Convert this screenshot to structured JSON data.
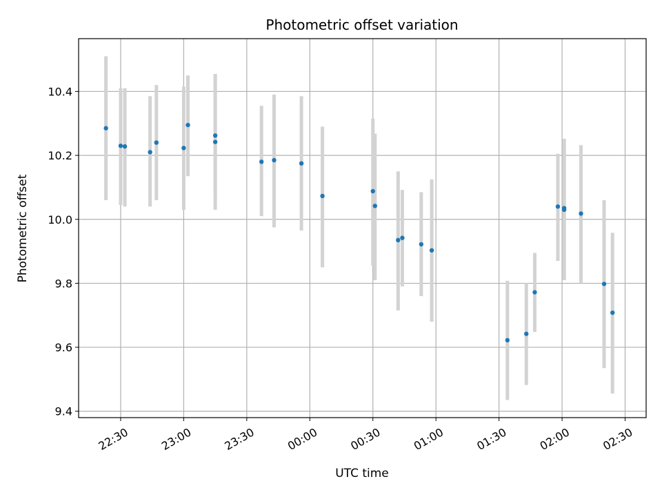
{
  "chart_data": {
    "type": "scatter",
    "title": "Photometric offset variation",
    "xlabel": "UTC time",
    "ylabel": "Photometric offset",
    "x_unit": "UTC time",
    "xlim": [
      "22:10",
      "02:40"
    ],
    "ylim": [
      9.38,
      10.565
    ],
    "grid": true,
    "x_ticks": [
      "22:30",
      "23:00",
      "23:30",
      "00:00",
      "00:30",
      "01:00",
      "01:30",
      "02:00",
      "02:30"
    ],
    "y_ticks": [
      "9.4",
      "9.6",
      "9.8",
      "10.0",
      "10.2",
      "10.4"
    ],
    "point_color": "#1f77b4",
    "errorbar_color": "#d3d3d3",
    "points": [
      {
        "x": "22:23",
        "y": 10.285,
        "err_low": 10.06,
        "err_high": 10.51
      },
      {
        "x": "22:30",
        "y": 10.23,
        "err_low": 10.045,
        "err_high": 10.41
      },
      {
        "x": "22:32",
        "y": 10.228,
        "err_low": 10.04,
        "err_high": 10.41
      },
      {
        "x": "22:44",
        "y": 10.21,
        "err_low": 10.04,
        "err_high": 10.385
      },
      {
        "x": "22:47",
        "y": 10.24,
        "err_low": 10.06,
        "err_high": 10.42
      },
      {
        "x": "23:00",
        "y": 10.223,
        "err_low": 10.03,
        "err_high": 10.415
      },
      {
        "x": "23:02",
        "y": 10.295,
        "err_low": 10.135,
        "err_high": 10.45
      },
      {
        "x": "23:15",
        "y": 10.242,
        "err_low": 10.03,
        "err_high": 10.455
      },
      {
        "x": "23:15",
        "y": 10.262,
        "err_low": 10.07,
        "err_high": 10.455
      },
      {
        "x": "23:37",
        "y": 10.18,
        "err_low": 10.01,
        "err_high": 10.355
      },
      {
        "x": "23:43",
        "y": 10.185,
        "err_low": 9.975,
        "err_high": 10.39
      },
      {
        "x": "23:56",
        "y": 10.175,
        "err_low": 9.965,
        "err_high": 10.385
      },
      {
        "x": "00:06",
        "y": 10.073,
        "err_low": 9.85,
        "err_high": 10.29
      },
      {
        "x": "00:30",
        "y": 10.088,
        "err_low": 9.855,
        "err_high": 10.315
      },
      {
        "x": "00:31",
        "y": 10.042,
        "err_low": 9.81,
        "err_high": 10.268
      },
      {
        "x": "00:42",
        "y": 9.935,
        "err_low": 9.715,
        "err_high": 10.15
      },
      {
        "x": "00:44",
        "y": 9.942,
        "err_low": 9.79,
        "err_high": 10.092
      },
      {
        "x": "00:53",
        "y": 9.922,
        "err_low": 9.76,
        "err_high": 10.085
      },
      {
        "x": "00:58",
        "y": 9.903,
        "err_low": 9.68,
        "err_high": 10.125
      },
      {
        "x": "01:34",
        "y": 9.622,
        "err_low": 9.435,
        "err_high": 9.808
      },
      {
        "x": "01:43",
        "y": 9.642,
        "err_low": 9.482,
        "err_high": 9.8
      },
      {
        "x": "01:47",
        "y": 9.772,
        "err_low": 9.648,
        "err_high": 9.895
      },
      {
        "x": "01:58",
        "y": 10.04,
        "err_low": 9.87,
        "err_high": 10.205
      },
      {
        "x": "02:01",
        "y": 10.035,
        "err_low": 9.81,
        "err_high": 10.252
      },
      {
        "x": "02:01",
        "y": 10.03,
        "err_low": 9.81,
        "err_high": 10.252
      },
      {
        "x": "02:09",
        "y": 10.018,
        "err_low": 9.8,
        "err_high": 10.232
      },
      {
        "x": "02:20",
        "y": 9.798,
        "err_low": 9.535,
        "err_high": 10.06
      },
      {
        "x": "02:24",
        "y": 9.708,
        "err_low": 9.455,
        "err_high": 9.958
      }
    ]
  }
}
